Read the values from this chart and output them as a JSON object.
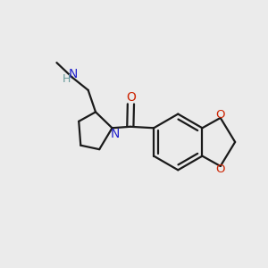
{
  "bg_color": "#ebebeb",
  "bond_color": "#1a1a1a",
  "n_color": "#2222cc",
  "o_color": "#cc2200",
  "h_color": "#669999",
  "line_width": 1.6,
  "dbo": 0.012,
  "figsize": [
    3.0,
    3.0
  ],
  "dpi": 100,
  "xlim": [
    0,
    1
  ],
  "ylim": [
    0,
    1
  ]
}
